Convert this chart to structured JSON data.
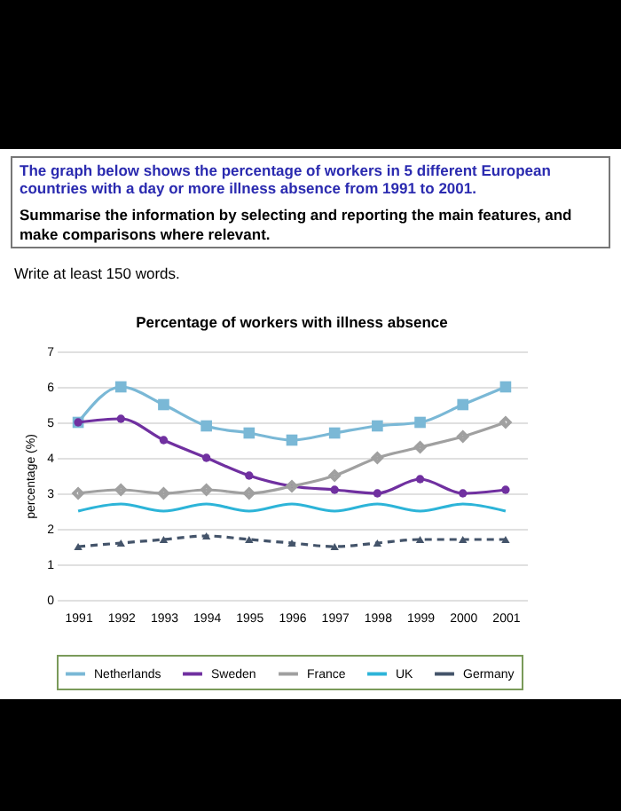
{
  "chart_data": {
    "type": "line",
    "title": "Percentage of workers with illness absence",
    "ylabel": "percentage (%)",
    "annotations": [
      "The graph below shows the percentage of workers in 5 different European countries with a day or more illness absence from 1991 to 2001.",
      "Summarise the information by selecting and reporting the main features, and make comparisons where relevant.",
      "Write at least 150 words."
    ],
    "categories": [
      "1991",
      "1992",
      "1993",
      "1994",
      "1995",
      "1996",
      "1997",
      "1998",
      "1999",
      "2000",
      "2001"
    ],
    "series": [
      {
        "name": "Netherlands",
        "color": "#7ab8d6",
        "marker": "square",
        "values": [
          5,
          6,
          5.5,
          4.9,
          4.7,
          4.5,
          4.7,
          4.9,
          5,
          5.5,
          6
        ]
      },
      {
        "name": "Sweden",
        "color": "#7030a0",
        "marker": "circle",
        "values": [
          5,
          5.1,
          4.5,
          4,
          3.5,
          3.2,
          3.1,
          3,
          3.4,
          3,
          3.1
        ]
      },
      {
        "name": "France",
        "color": "#a0a0a0",
        "marker": "diamond",
        "values": [
          3,
          3.1,
          3,
          3.1,
          3,
          3.2,
          3.5,
          4,
          4.3,
          4.6,
          5
        ]
      },
      {
        "name": "UK",
        "color": "#2db4d8",
        "marker": "none",
        "values": [
          2.5,
          2.7,
          2.5,
          2.7,
          2.5,
          2.7,
          2.5,
          2.7,
          2.5,
          2.7,
          2.5
        ]
      },
      {
        "name": "Germany",
        "color": "#44546a",
        "marker": "triangle",
        "line_style": "dashed",
        "values": [
          1.5,
          1.6,
          1.7,
          1.8,
          1.7,
          1.6,
          1.5,
          1.6,
          1.7,
          1.7,
          1.7
        ]
      }
    ],
    "ylim": [
      0,
      7
    ],
    "yticks": [
      0,
      1,
      2,
      3,
      4,
      5,
      6,
      7
    ],
    "grid": "y",
    "legend": "bottom"
  }
}
